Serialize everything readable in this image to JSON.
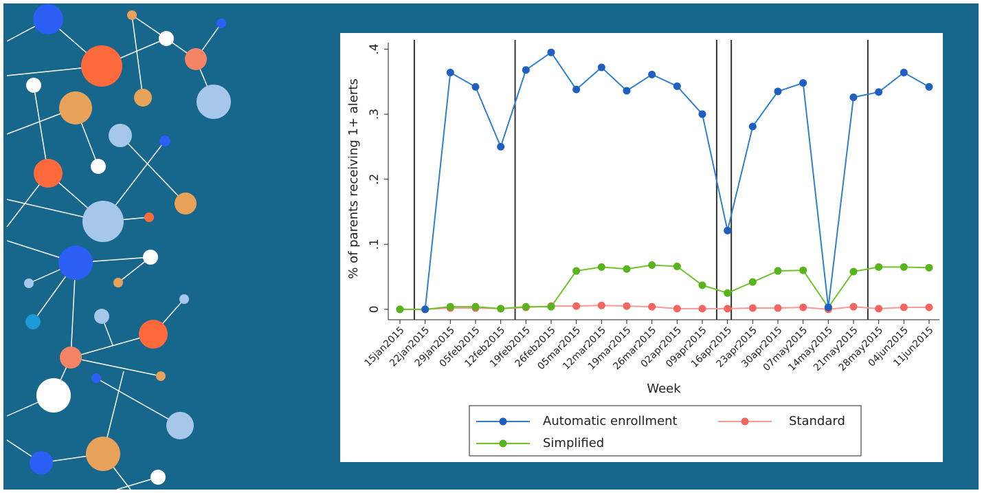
{
  "chart_data": {
    "type": "line",
    "y_label": "% of parents receiving 1+ alerts",
    "x_label": "Week",
    "categories": [
      "15jan2015",
      "22jan2015",
      "29jan2015",
      "05feb2015",
      "12feb2015",
      "19feb2015",
      "26feb2015",
      "05mar2015",
      "12mar2015",
      "19mar2015",
      "26mar2015",
      "02apr2015",
      "09apr2015",
      "16apr2015",
      "23apr2015",
      "30apr2015",
      "07may2015",
      "14may2015",
      "21may2015",
      "28may2015",
      "04jun2015",
      "11jun2015"
    ],
    "series": [
      {
        "name": "Automatic enrollment",
        "color": "#1f5fbf",
        "line_color": "#2f7fd0",
        "values": [
          null,
          0,
          0.364,
          0.342,
          0.25,
          0.368,
          0.395,
          0.338,
          0.372,
          0.336,
          0.361,
          0.343,
          0.3,
          0.121,
          0.281,
          0.335,
          0.348,
          0.003,
          0.326,
          0.334,
          0.364,
          0.342
        ]
      },
      {
        "name": "Standard",
        "color": "#f2665f",
        "line_color": "#f59a95",
        "values": [
          0,
          0,
          0.002,
          0.002,
          0.001,
          0.003,
          0.005,
          0.005,
          0.006,
          0.005,
          0.004,
          0.001,
          0.001,
          0.001,
          0.002,
          0.002,
          0.003,
          0,
          0.004,
          0.001,
          0.003,
          0.003
        ]
      },
      {
        "name": "Simplified",
        "color": "#58b41c",
        "line_color": "#6cc42a",
        "values": [
          0,
          0,
          0.004,
          0.004,
          0.001,
          0.004,
          0.004,
          0.059,
          0.065,
          0.062,
          0.068,
          0.066,
          0.037,
          0.025,
          0.042,
          0.059,
          0.06,
          0.003,
          0.058,
          0.065,
          0.065,
          0.064
        ]
      }
    ],
    "event_lines": [
      0.57,
      4.57,
      12.57,
      13.15,
      18.57
    ],
    "ylim": [
      -0.016,
      0.41
    ],
    "yticks": [
      0,
      {
        "value": 0.1,
        "label": ".1"
      },
      {
        "value": 0.2,
        "label": ".2"
      },
      {
        "value": 0.3,
        "label": ".3"
      },
      {
        "value": 0.4,
        "label": ".4"
      }
    ]
  }
}
